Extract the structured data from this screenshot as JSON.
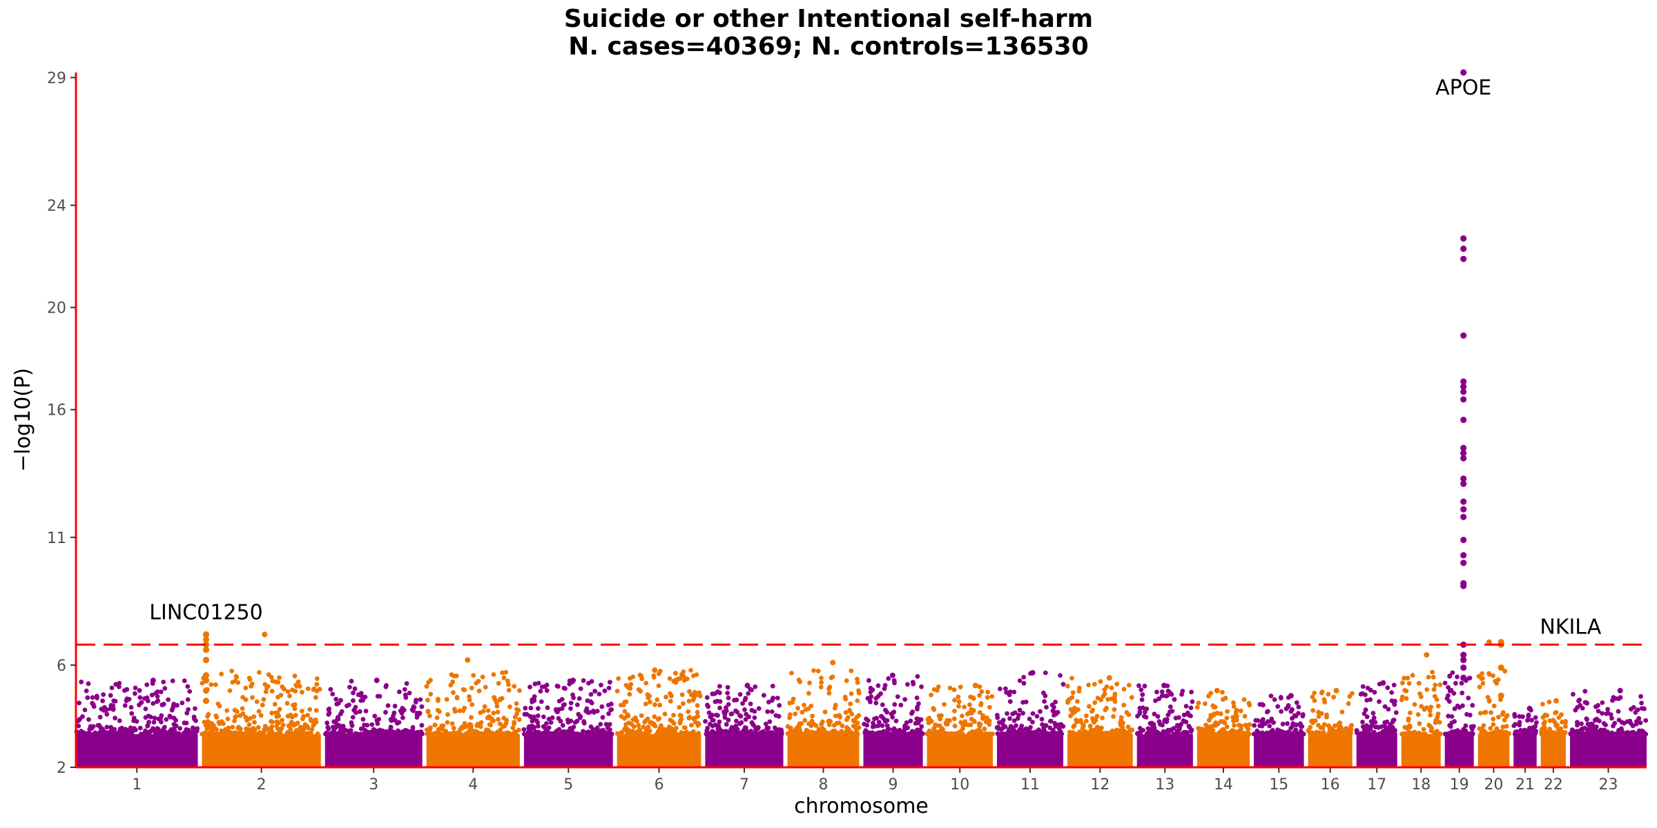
{
  "chart_data": {
    "type": "scatter",
    "subtype": "manhattan",
    "title": "Suicide or other Intentional self-harm",
    "subtitle": "N. cases=40369; N. controls=136530",
    "xlabel": "chromosome",
    "ylabel": "−log10(P)",
    "ylim": [
      2,
      29.2
    ],
    "yticks": [
      2,
      6,
      11,
      16,
      20,
      24,
      29
    ],
    "significance_line": 6.8,
    "significance_color": "#ff0000",
    "axis_color": "#ff0000",
    "series_colors": [
      "#8b008b",
      "#ee7600"
    ],
    "grid": false,
    "legend": "none",
    "chromosomes": [
      {
        "label": "1",
        "peak": 5.4,
        "color": "#8b008b"
      },
      {
        "label": "2",
        "peak": 7.2,
        "color": "#ee7600"
      },
      {
        "label": "3",
        "peak": 5.4,
        "color": "#8b008b"
      },
      {
        "label": "4",
        "peak": 6.2,
        "color": "#ee7600"
      },
      {
        "label": "5",
        "peak": 5.4,
        "color": "#8b008b"
      },
      {
        "label": "6",
        "peak": 5.8,
        "color": "#ee7600"
      },
      {
        "label": "7",
        "peak": 5.2,
        "color": "#8b008b"
      },
      {
        "label": "8",
        "peak": 6.1,
        "color": "#ee7600"
      },
      {
        "label": "9",
        "peak": 5.6,
        "color": "#8b008b"
      },
      {
        "label": "10",
        "peak": 5.2,
        "color": "#ee7600"
      },
      {
        "label": "11",
        "peak": 5.7,
        "color": "#8b008b"
      },
      {
        "label": "12",
        "peak": 5.5,
        "color": "#ee7600"
      },
      {
        "label": "13",
        "peak": 5.2,
        "color": "#8b008b"
      },
      {
        "label": "14",
        "peak": 5.0,
        "color": "#ee7600"
      },
      {
        "label": "15",
        "peak": 4.8,
        "color": "#8b008b"
      },
      {
        "label": "16",
        "peak": 5.0,
        "color": "#ee7600"
      },
      {
        "label": "17",
        "peak": 5.3,
        "color": "#8b008b"
      },
      {
        "label": "18",
        "peak": 6.4,
        "color": "#ee7600"
      },
      {
        "label": "19",
        "peak": 29.2,
        "color": "#8b008b"
      },
      {
        "label": "20",
        "peak": 6.9,
        "color": "#ee7600"
      },
      {
        "label": "21",
        "peak": 4.3,
        "color": "#8b008b"
      },
      {
        "label": "22",
        "peak": 4.6,
        "color": "#ee7600"
      },
      {
        "label": "23",
        "peak": 5.0,
        "color": "#8b008b"
      }
    ],
    "top_hits": [
      {
        "gene": "LINC01250",
        "chromosome": "2",
        "y": 7.2
      },
      {
        "gene": "APOE",
        "chromosome": "19",
        "y": 29.2
      },
      {
        "gene": "NKILA",
        "chromosome": "20",
        "y": 6.9
      }
    ],
    "apoe_hits": [
      29.2,
      22.7,
      22.3,
      21.9,
      18.9,
      17.1,
      16.9,
      16.7,
      16.4,
      15.6,
      14.5,
      14.3,
      14.1,
      13.3,
      13.1,
      12.4,
      12.1,
      11.8,
      10.9,
      10.3,
      10.0,
      9.2,
      9.1,
      6.8,
      6.4,
      6.2,
      5.9,
      5.5
    ]
  }
}
